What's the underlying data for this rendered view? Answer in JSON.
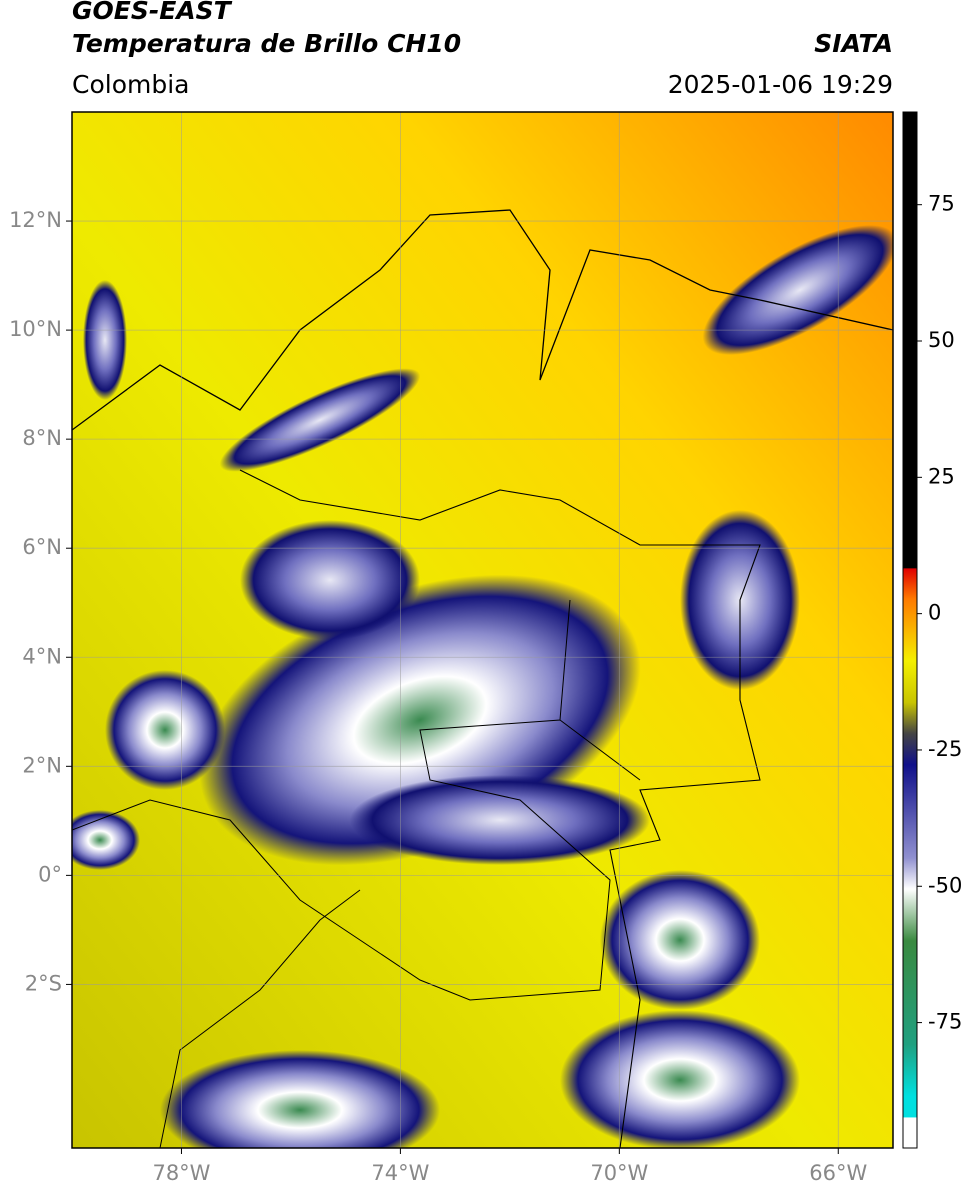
{
  "header": {
    "title": "GOES-EAST",
    "subtitle": "Temperatura de Brillo CH10",
    "source": "SIATA",
    "region": "Colombia",
    "timestamp": "2025-01-06 19:29"
  },
  "map": {
    "xlim": [
      -80,
      -65
    ],
    "ylim": [
      -5,
      14
    ],
    "xticks": [
      {
        "value": -78,
        "label": "78°W"
      },
      {
        "value": -74,
        "label": "74°W"
      },
      {
        "value": -70,
        "label": "70°W"
      },
      {
        "value": -66,
        "label": "66°W"
      }
    ],
    "yticks": [
      {
        "value": 12,
        "label": "12°N"
      },
      {
        "value": 10,
        "label": "10°N"
      },
      {
        "value": 8,
        "label": "8°N"
      },
      {
        "value": 6,
        "label": "6°N"
      },
      {
        "value": 4,
        "label": "4°N"
      },
      {
        "value": 2,
        "label": "2°N"
      },
      {
        "value": 0,
        "label": "0°"
      },
      {
        "value": -2,
        "label": "2°S"
      }
    ],
    "grid": true
  },
  "colorbar": {
    "ylim": [
      -98,
      92
    ],
    "yticks": [
      75,
      50,
      25,
      0,
      -25,
      -50,
      -75
    ]
  }
}
